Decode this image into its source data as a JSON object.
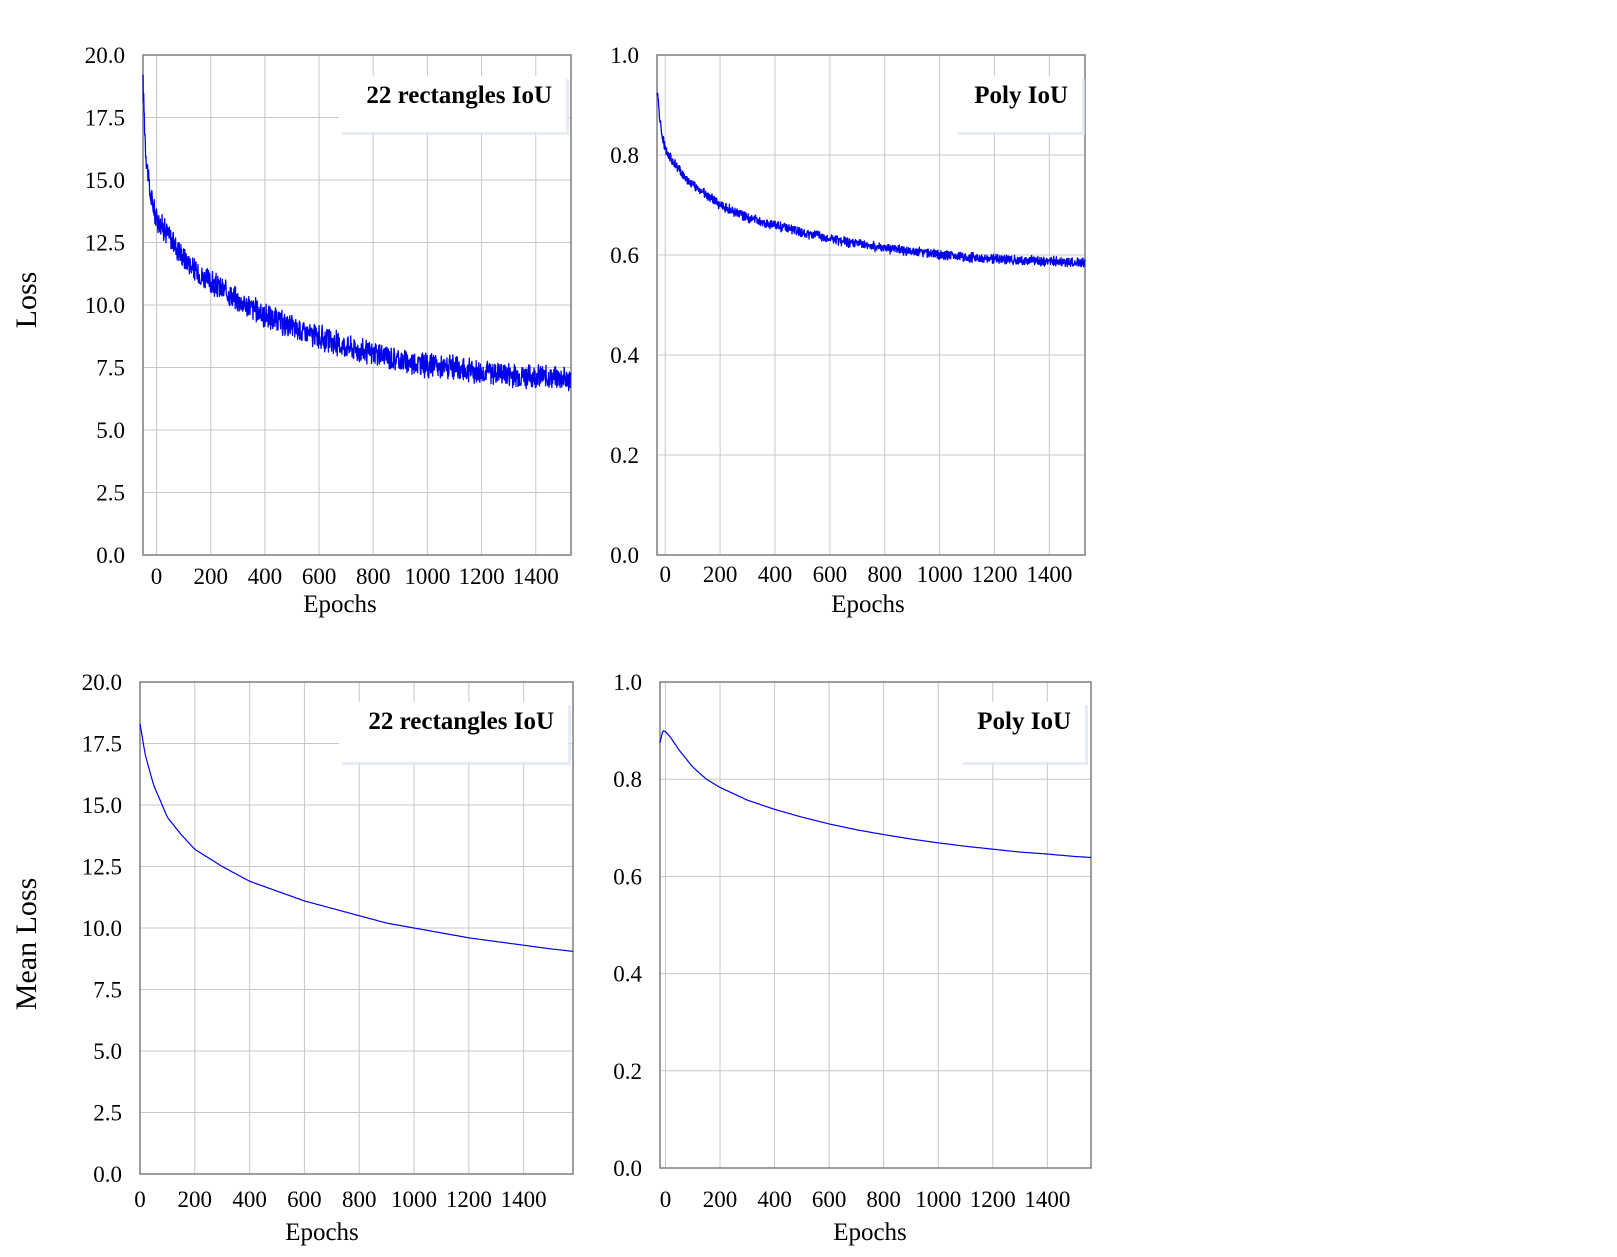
{
  "row_labels": [
    "Loss",
    "Mean Loss"
  ],
  "colors": {
    "line": "#0000ee",
    "grid": "#c8c8c8",
    "frame": "#7f7f7f"
  },
  "chart_data": [
    {
      "type": "line",
      "title": "22 rectangles IoU",
      "xlabel": "Epochs",
      "ylabel": "Loss",
      "xlim": [
        -50,
        1530
      ],
      "ylim": [
        0,
        20
      ],
      "xticks": [
        0,
        200,
        400,
        600,
        800,
        1000,
        1200,
        1400
      ],
      "xtick_labels": [
        "0",
        "200",
        "400",
        "600",
        "800",
        "1000",
        "1200",
        "1400"
      ],
      "yticks": [
        0,
        2.5,
        5,
        7.5,
        10,
        12.5,
        15,
        17.5,
        20
      ],
      "ytick_labels": [
        "0.0",
        "2.5",
        "5.0",
        "7.5",
        "10.0",
        "12.5",
        "15.0",
        "17.5",
        "20.0"
      ],
      "noisy": true,
      "noise_amp": 0.55,
      "x": [
        -50,
        -40,
        -25,
        0,
        50,
        100,
        150,
        200,
        300,
        400,
        500,
        600,
        700,
        800,
        900,
        1000,
        1100,
        1200,
        1300,
        1400,
        1530
      ],
      "y": [
        18.8,
        16.2,
        14.5,
        13.5,
        12.7,
        11.9,
        11.3,
        10.9,
        10.2,
        9.6,
        9.1,
        8.7,
        8.35,
        8.05,
        7.8,
        7.6,
        7.45,
        7.35,
        7.25,
        7.15,
        7.05
      ]
    },
    {
      "type": "line",
      "title": "Poly IoU",
      "xlabel": "Epochs",
      "ylabel": "",
      "xlim": [
        -30,
        1530
      ],
      "ylim": [
        0,
        1.0
      ],
      "xticks": [
        0,
        200,
        400,
        600,
        800,
        1000,
        1200,
        1400
      ],
      "xtick_labels": [
        "0",
        "200",
        "400",
        "600",
        "800",
        "1000",
        "1200",
        "1400"
      ],
      "yticks": [
        0,
        0.2,
        0.4,
        0.6,
        0.8,
        1.0
      ],
      "ytick_labels": [
        "0.0",
        "0.2",
        "0.4",
        "0.6",
        "0.8",
        "1.0"
      ],
      "noisy": true,
      "noise_amp": 0.011,
      "x": [
        -30,
        -15,
        0,
        50,
        100,
        200,
        300,
        400,
        500,
        600,
        700,
        800,
        900,
        1000,
        1100,
        1200,
        1300,
        1400,
        1530
      ],
      "y": [
        0.93,
        0.85,
        0.81,
        0.77,
        0.74,
        0.7,
        0.675,
        0.66,
        0.645,
        0.632,
        0.622,
        0.614,
        0.607,
        0.601,
        0.596,
        0.592,
        0.589,
        0.587,
        0.585
      ]
    },
    {
      "type": "line",
      "title": "22 rectangles IoU",
      "xlabel": "Epochs",
      "ylabel": "Mean Loss",
      "xlim": [
        0,
        1580
      ],
      "ylim": [
        0,
        20
      ],
      "xticks": [
        0,
        200,
        400,
        600,
        800,
        1000,
        1200,
        1400
      ],
      "xtick_labels": [
        "0",
        "200",
        "400",
        "600",
        "800",
        "1000",
        "1200",
        "1400"
      ],
      "yticks": [
        0,
        2.5,
        5,
        7.5,
        10,
        12.5,
        15,
        17.5,
        20
      ],
      "ytick_labels": [
        "0.0",
        "2.5",
        "5.0",
        "7.5",
        "10.0",
        "12.5",
        "15.0",
        "17.5",
        "20.0"
      ],
      "noisy": false,
      "x": [
        0,
        20,
        50,
        100,
        150,
        200,
        300,
        400,
        500,
        600,
        700,
        800,
        900,
        1000,
        1100,
        1200,
        1300,
        1400,
        1500,
        1580
      ],
      "y": [
        18.3,
        17.0,
        15.8,
        14.5,
        13.8,
        13.2,
        12.5,
        11.9,
        11.5,
        11.1,
        10.8,
        10.5,
        10.2,
        10.0,
        9.8,
        9.6,
        9.45,
        9.3,
        9.15,
        9.05
      ]
    },
    {
      "type": "line",
      "title": "Poly IoU",
      "xlabel": "Epochs",
      "ylabel": "",
      "xlim": [
        -20,
        1560
      ],
      "ylim": [
        0,
        1.0
      ],
      "xticks": [
        0,
        200,
        400,
        600,
        800,
        1000,
        1200,
        1400
      ],
      "xtick_labels": [
        "0",
        "200",
        "400",
        "600",
        "800",
        "1000",
        "1200",
        "1400"
      ],
      "yticks": [
        0,
        0.2,
        0.4,
        0.6,
        0.8,
        1.0
      ],
      "ytick_labels": [
        "0.0",
        "0.2",
        "0.4",
        "0.6",
        "0.8",
        "1.0"
      ],
      "noisy": false,
      "x": [
        -20,
        -10,
        0,
        20,
        50,
        100,
        150,
        200,
        300,
        400,
        500,
        600,
        700,
        800,
        900,
        1000,
        1100,
        1200,
        1300,
        1400,
        1500,
        1560
      ],
      "y": [
        0.875,
        0.9,
        0.898,
        0.885,
        0.86,
        0.825,
        0.8,
        0.783,
        0.757,
        0.738,
        0.722,
        0.708,
        0.696,
        0.686,
        0.677,
        0.669,
        0.662,
        0.656,
        0.65,
        0.646,
        0.641,
        0.639
      ]
    }
  ]
}
